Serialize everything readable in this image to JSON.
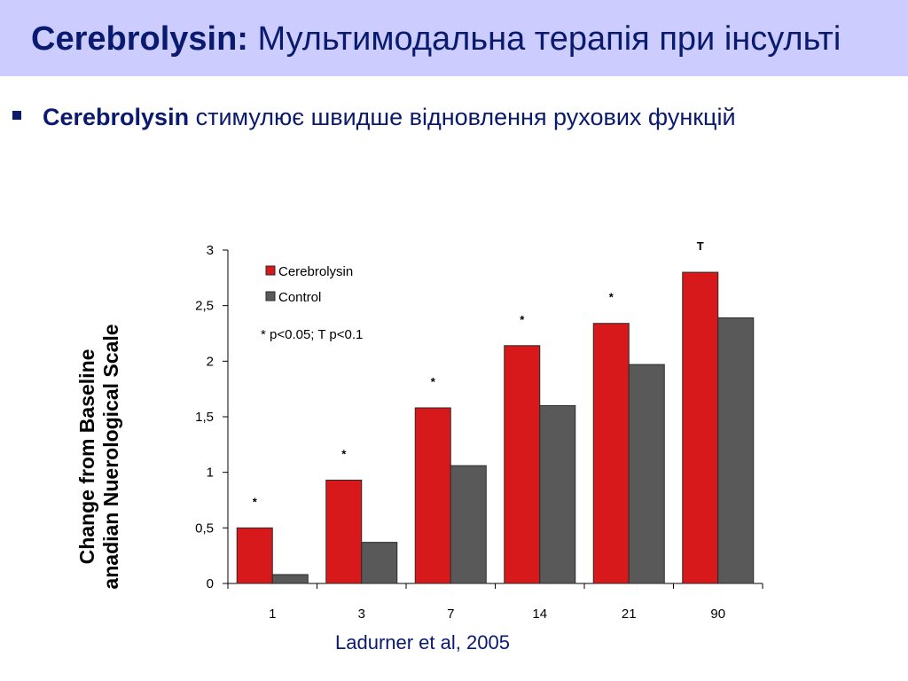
{
  "slide": {
    "title_bold": "Cerebrolysin:",
    "title_rest": "Мультимодальна терапія при інсульті",
    "bullet_bold": "Cerebrolysin",
    "bullet_rest": "стимулює швидше відновлення рухових функцій",
    "source": "Ladurner et al, 2005"
  },
  "colors": {
    "title_band": "#ccccff",
    "title_text": "#0a1a6e",
    "cerebrolysin": "#d7191c",
    "control": "#595959"
  },
  "chart_data": {
    "type": "bar",
    "ylabel_lines": [
      "Change from Baseline",
      "anadian Nuerological Scale"
    ],
    "categories": [
      "1",
      "3",
      "7",
      "14",
      "21",
      "90"
    ],
    "series": [
      {
        "name": "Cerebrolysin",
        "values": [
          0.5,
          0.93,
          1.58,
          2.14,
          2.34,
          2.8
        ],
        "color": "#d7191c"
      },
      {
        "name": "Control",
        "values": [
          0.08,
          0.37,
          1.06,
          1.6,
          1.97,
          2.39
        ],
        "color": "#595959"
      }
    ],
    "significance_marks": [
      "*",
      "*",
      "*",
      "*",
      "*",
      "T"
    ],
    "annotation": "* p<0.05;  T p<0.1",
    "ylim": [
      0,
      3
    ],
    "yticks": [
      "0",
      "0,5",
      "1",
      "1,5",
      "2",
      "2,5",
      "3"
    ],
    "legend_position": "top-left",
    "grid": false
  }
}
